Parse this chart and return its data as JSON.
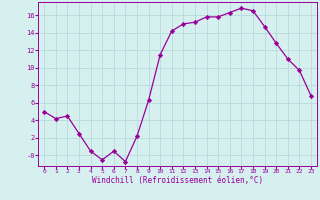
{
  "x": [
    0,
    1,
    2,
    3,
    4,
    5,
    6,
    7,
    8,
    9,
    10,
    11,
    12,
    13,
    14,
    15,
    16,
    17,
    18,
    19,
    20,
    21,
    22,
    23
  ],
  "y": [
    5.0,
    4.2,
    4.5,
    2.5,
    0.5,
    -0.5,
    0.5,
    -0.7,
    2.2,
    6.3,
    11.5,
    14.2,
    15.0,
    15.2,
    15.8,
    15.8,
    16.3,
    16.8,
    16.5,
    14.7,
    12.8,
    11.0,
    9.7,
    6.8
  ],
  "line_color": "#990099",
  "marker": "D",
  "marker_size": 2.2,
  "bg_color": "#d6f0f0",
  "grid_color": "#b8dada",
  "xlabel": "Windchill (Refroidissement éolien,°C)",
  "xlabel_color": "#990099",
  "tick_color": "#990099",
  "ylim": [
    -1.2,
    17.5
  ],
  "xlim": [
    -0.5,
    23.5
  ],
  "yticks": [
    0,
    2,
    4,
    6,
    8,
    10,
    12,
    14,
    16
  ],
  "ytick_labels": [
    "-0",
    "2",
    "4",
    "6",
    "8",
    "10",
    "12",
    "14",
    "16"
  ],
  "xtick_labels": [
    "0",
    "1",
    "2",
    "3",
    "4",
    "5",
    "6",
    "7",
    "8",
    "9",
    "10",
    "11",
    "12",
    "13",
    "14",
    "15",
    "16",
    "17",
    "18",
    "19",
    "20",
    "21",
    "22",
    "23"
  ]
}
